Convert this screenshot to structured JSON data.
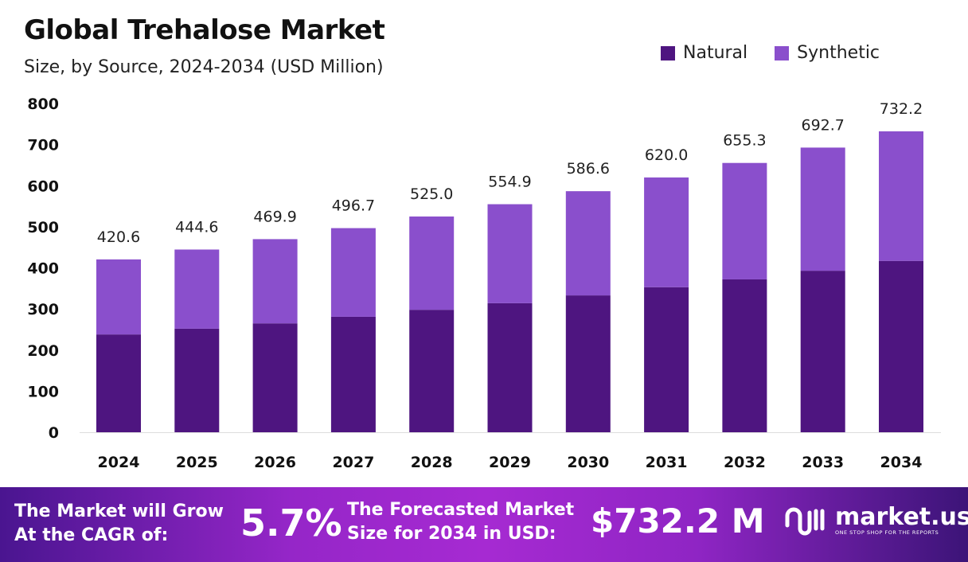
{
  "chart_data": {
    "type": "bar",
    "stacked": true,
    "title": "Global Trehalose Market",
    "subtitle": "Size, by Source, 2024-2034 (USD Million)",
    "categories": [
      "2024",
      "2025",
      "2026",
      "2027",
      "2028",
      "2029",
      "2030",
      "2031",
      "2032",
      "2033",
      "2034"
    ],
    "series": [
      {
        "name": "Natural",
        "color": "#4e1580",
        "values": [
          238,
          252,
          265,
          281,
          298,
          314,
          333,
          353,
          372,
          393,
          417
        ]
      },
      {
        "name": "Synthetic",
        "color": "#8a4fcc",
        "values": [
          182.6,
          192.6,
          204.9,
          215.7,
          227.0,
          240.9,
          253.6,
          267.0,
          283.3,
          299.7,
          315.2
        ]
      }
    ],
    "totals_labels": [
      "420.6",
      "444.6",
      "469.9",
      "496.7",
      "525.0",
      "554.9",
      "586.6",
      "620.0",
      "655.3",
      "692.7",
      "732.2"
    ],
    "ylim": [
      0,
      800
    ],
    "yticks": [
      "0",
      "100",
      "200",
      "300",
      "400",
      "500",
      "600",
      "700",
      "800"
    ],
    "grid": false,
    "legend_position": "top-right"
  },
  "banner": {
    "cagr_text_1": "The Market will Grow",
    "cagr_text_2": "At the CAGR of:",
    "cagr_value": "5.7%",
    "forecast_text_1": "The Forecasted Market",
    "forecast_text_2": "Size for 2034 in USD:",
    "forecast_value": "$732.2 M",
    "logo_name": "market.us",
    "logo_tagline": "ONE STOP SHOP FOR THE REPORTS"
  }
}
